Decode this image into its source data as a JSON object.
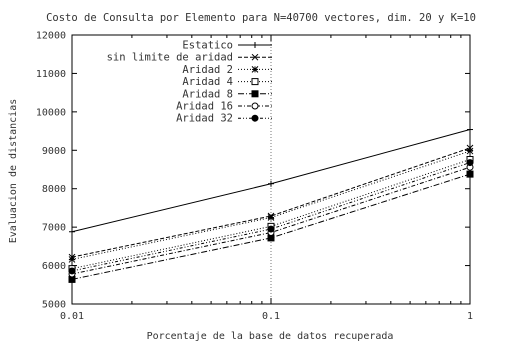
{
  "chart_data": {
    "type": "line",
    "title": "Costo de Consulta por Elemento para N=40700 vectores, dim. 20 y K=10",
    "xlabel": "Porcentaje de la base de datos recuperada",
    "ylabel": "Evaluacion de distancias",
    "x_scale": "log",
    "xlim": [
      0.01,
      1
    ],
    "ylim": [
      5000,
      12000
    ],
    "x_tick_labels": [
      "0.01",
      "0.1",
      "1"
    ],
    "y_tick_labels": [
      "5000",
      "6000",
      "7000",
      "8000",
      "9000",
      "10000",
      "11000",
      "12000"
    ],
    "grid": "dotted vertical at x=0.1",
    "legend_position": "top-center",
    "x": [
      0.01,
      0.1,
      1
    ],
    "series": [
      {
        "name": "Estatico",
        "marker": "plus",
        "dash": "solid",
        "values": [
          6880,
          8130,
          9540
        ]
      },
      {
        "name": "sin limite de aridad",
        "marker": "cross",
        "dash": "dashed",
        "values": [
          6220,
          7290,
          9060
        ]
      },
      {
        "name": "Aridad 2",
        "marker": "star",
        "dash": "dotted",
        "values": [
          6160,
          7250,
          8980
        ]
      },
      {
        "name": "Aridad 4",
        "marker": "open-square",
        "dash": "dotted",
        "values": [
          5920,
          7020,
          8760
        ]
      },
      {
        "name": "Aridad 8",
        "marker": "filled-square",
        "dash": "dashdot",
        "values": [
          5640,
          6720,
          8380
        ]
      },
      {
        "name": "Aridad 16",
        "marker": "open-circle",
        "dash": "dashdot2",
        "values": [
          5780,
          6860,
          8560
        ]
      },
      {
        "name": "Aridad 32",
        "marker": "filled-circle",
        "dash": "dashdot3",
        "values": [
          5860,
          6950,
          8680
        ]
      }
    ]
  }
}
